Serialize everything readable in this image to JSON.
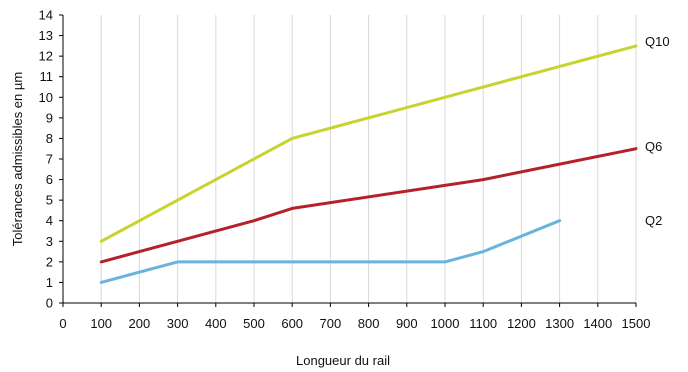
{
  "chart_data": {
    "type": "line",
    "xlabel": "Longueur du rail",
    "ylabel": "Tolérances admissibles en µm",
    "xlim": [
      0,
      1500
    ],
    "ylim": [
      0,
      14
    ],
    "xticks": [
      0,
      100,
      200,
      300,
      400,
      500,
      600,
      700,
      800,
      900,
      1000,
      1100,
      1200,
      1300,
      1400,
      1500
    ],
    "yticks": [
      0,
      1,
      2,
      3,
      4,
      5,
      6,
      7,
      8,
      9,
      10,
      11,
      12,
      13,
      14
    ],
    "grid": "vertical",
    "legend": "right, beside line ends",
    "series": [
      {
        "name": "Q10",
        "color": "#c8d32e",
        "x": [
          100,
          600,
          1500
        ],
        "y": [
          3,
          8,
          12.5
        ]
      },
      {
        "name": "Q6",
        "color": "#b5212b",
        "x": [
          100,
          500,
          600,
          1100,
          1500
        ],
        "y": [
          2,
          4,
          4.6,
          6,
          7.5
        ]
      },
      {
        "name": "Q2",
        "color": "#6ab4dc",
        "x": [
          100,
          300,
          1000,
          1100,
          1300
        ],
        "y": [
          1,
          2,
          2,
          2.5,
          4
        ]
      }
    ]
  }
}
